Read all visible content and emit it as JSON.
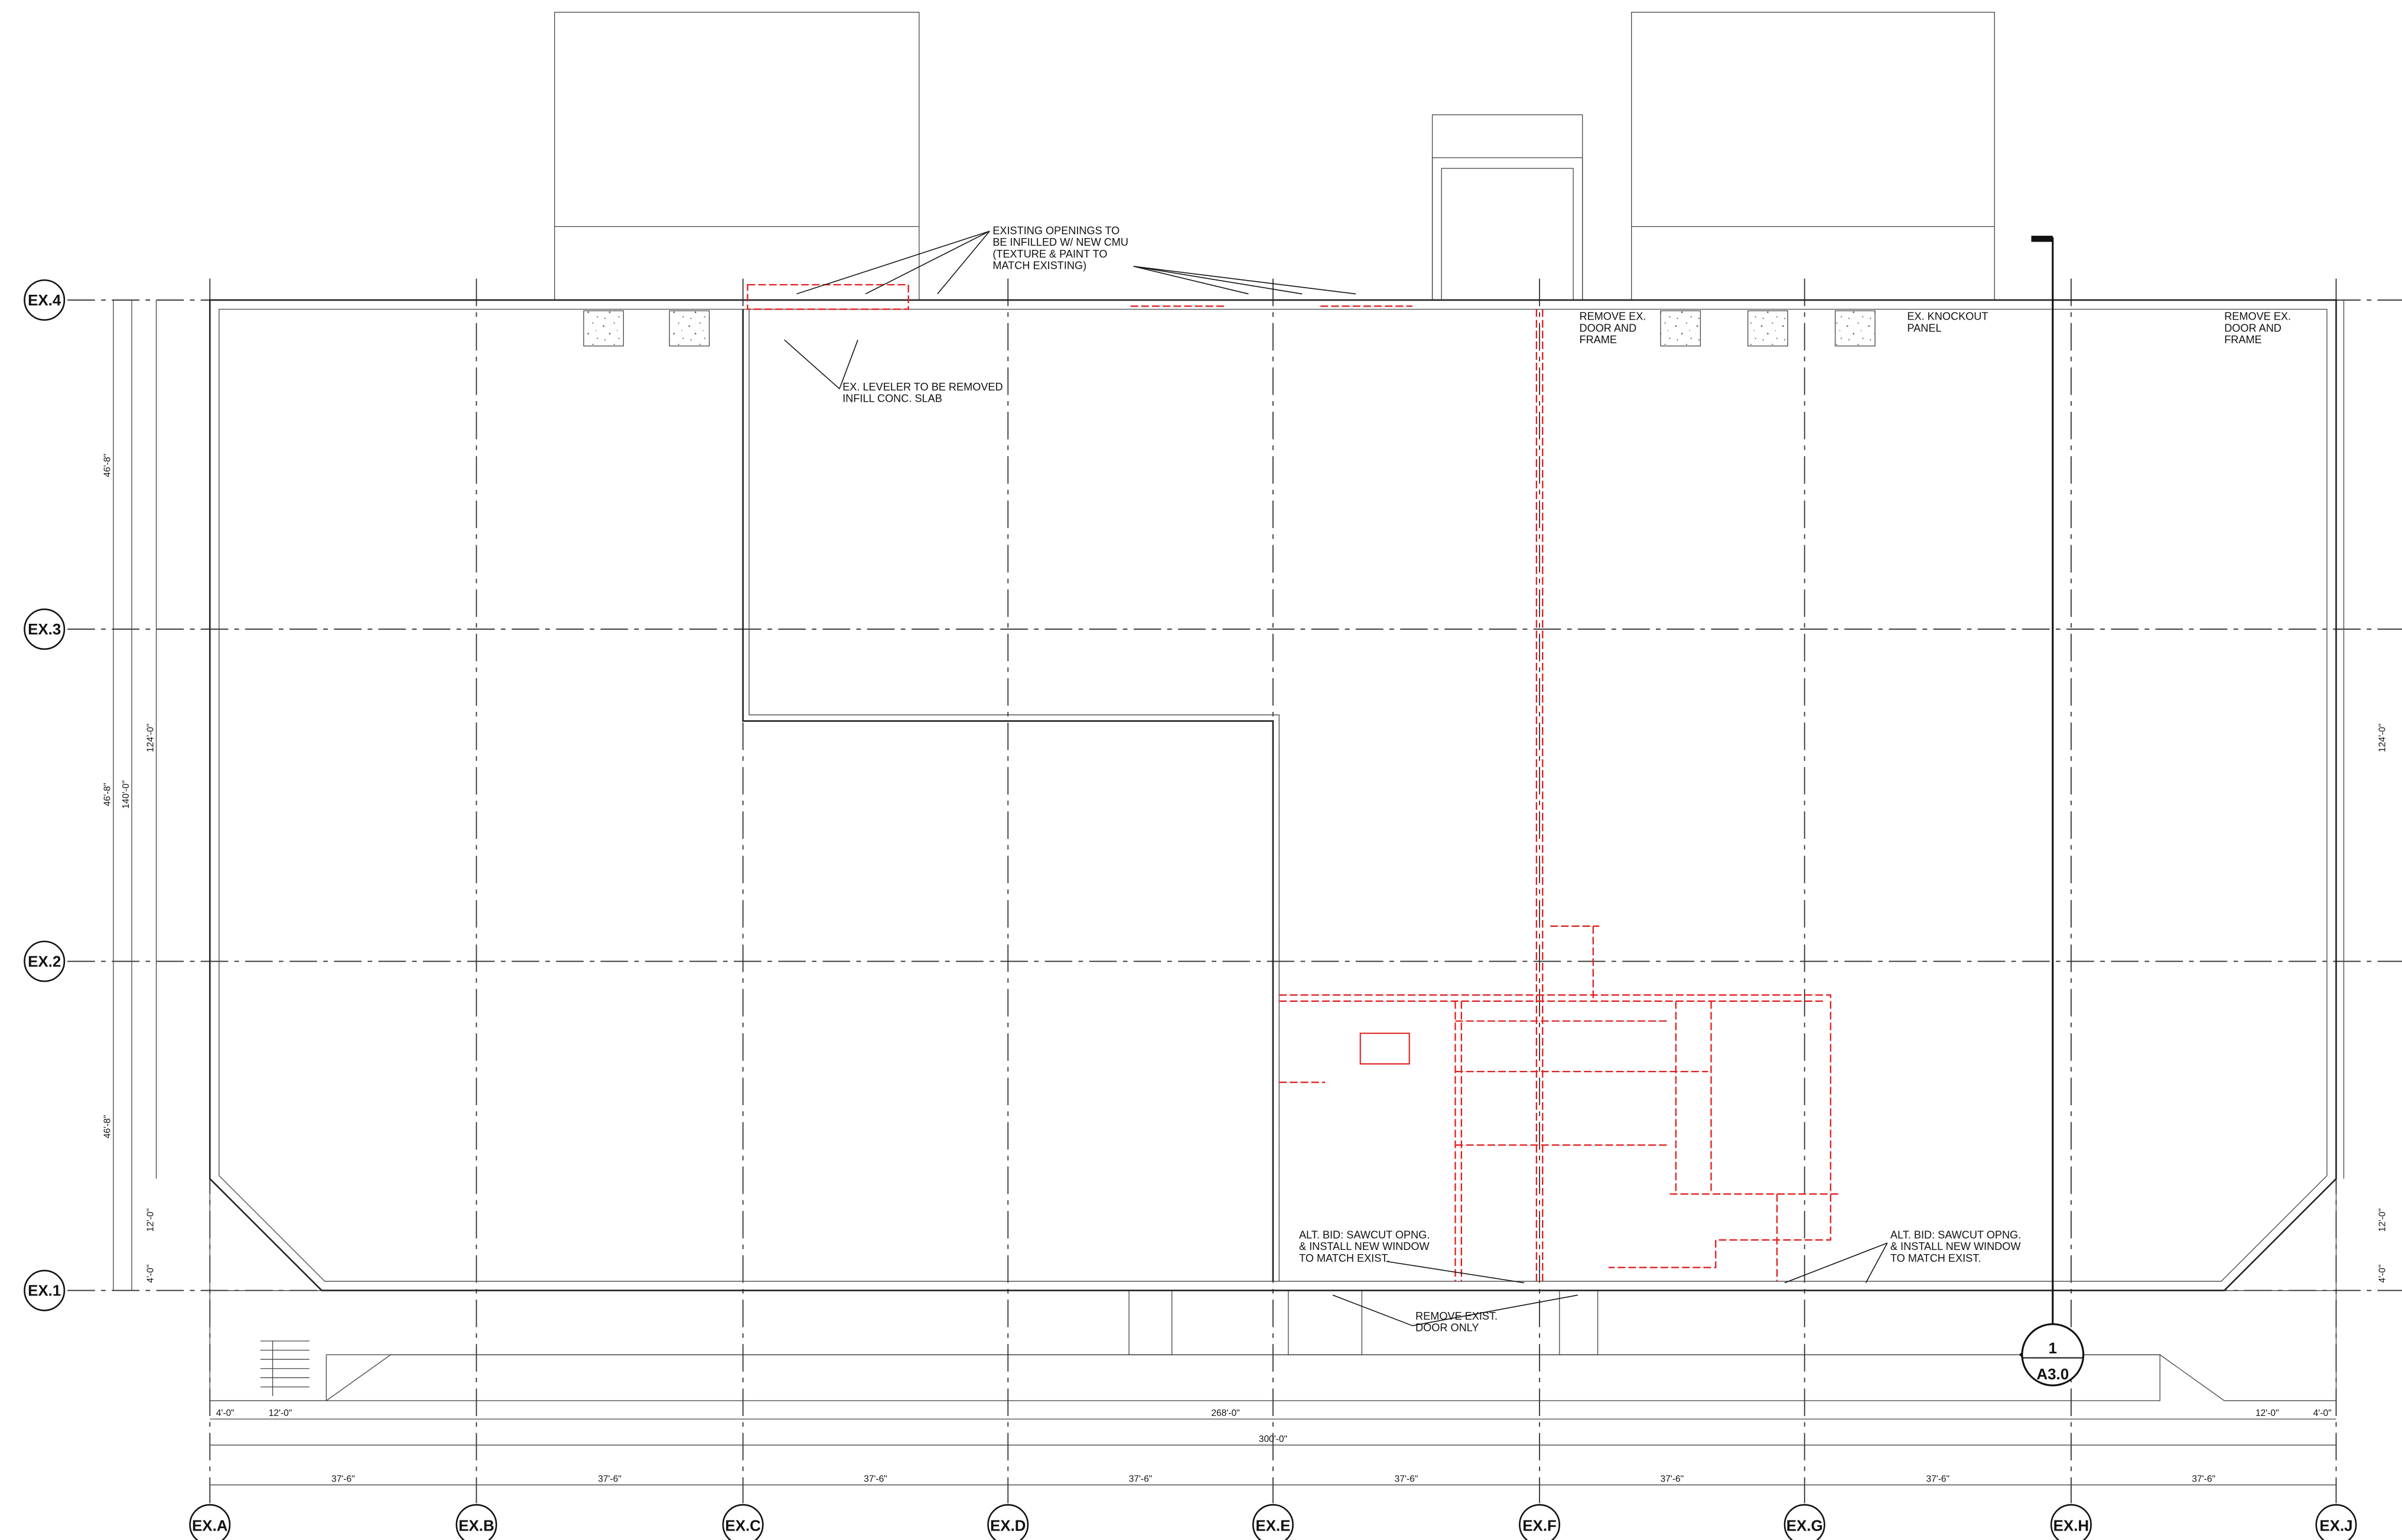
{
  "grid": {
    "columns": [
      "EX.A",
      "EX.B",
      "EX.C",
      "EX.D",
      "EX.E",
      "EX.F",
      "EX.G",
      "EX.H",
      "EX.J"
    ],
    "rows": [
      "EX.4",
      "EX.3",
      "EX.2",
      "EX.1"
    ]
  },
  "dimensions": {
    "bays": [
      "37'-6\"",
      "37'-6\"",
      "37'-6\"",
      "37'-6\"",
      "37'-6\"",
      "37'-6\"",
      "37'-6\"",
      "37'-6\""
    ],
    "overall": "300'-0\"",
    "inner": "268'-0\"",
    "left_end": [
      "4'-0\"",
      "12'-0\""
    ],
    "right_end": [
      "12'-0\"",
      "4'-0\""
    ],
    "vertical_left": [
      "46'-8\"",
      "46'-8\"",
      "46'-8\"",
      "12'-0\"",
      "4'-0\"",
      "140'-0\"",
      "124'-0\""
    ],
    "vertical_right": [
      "124'-0\"",
      "12'-0\"",
      "4'-0\""
    ]
  },
  "notes": [
    {
      "lines": [
        "EXISTING OPENINGS TO",
        "BE INFILLED W/ NEW CMU",
        "(TEXTURE & PAINT TO",
        "MATCH EXISTING)"
      ]
    },
    {
      "lines": [
        "EX. LEVELER TO BE REMOVED",
        "INFILL CONC. SLAB"
      ]
    },
    {
      "lines": [
        "REMOVE EX.",
        "DOOR AND",
        "FRAME"
      ]
    },
    {
      "lines": [
        "EX. KNOCKOUT",
        "PANEL"
      ]
    },
    {
      "lines": [
        "REMOVE EX.",
        "DOOR AND",
        "FRAME"
      ]
    },
    {
      "lines": [
        "ALT. BID:  SAWCUT OPNG.",
        "& INSTALL NEW WINDOW",
        "TO MATCH EXIST."
      ]
    },
    {
      "lines": [
        "ALT. BID:  SAWCUT OPNG.",
        "& INSTALL NEW WINDOW",
        "TO MATCH EXIST."
      ]
    },
    {
      "lines": [
        "REMOVE EXIST.",
        "DOOR ONLY"
      ]
    }
  ],
  "section_marker": {
    "number": "1",
    "sheet": "A3.0"
  }
}
